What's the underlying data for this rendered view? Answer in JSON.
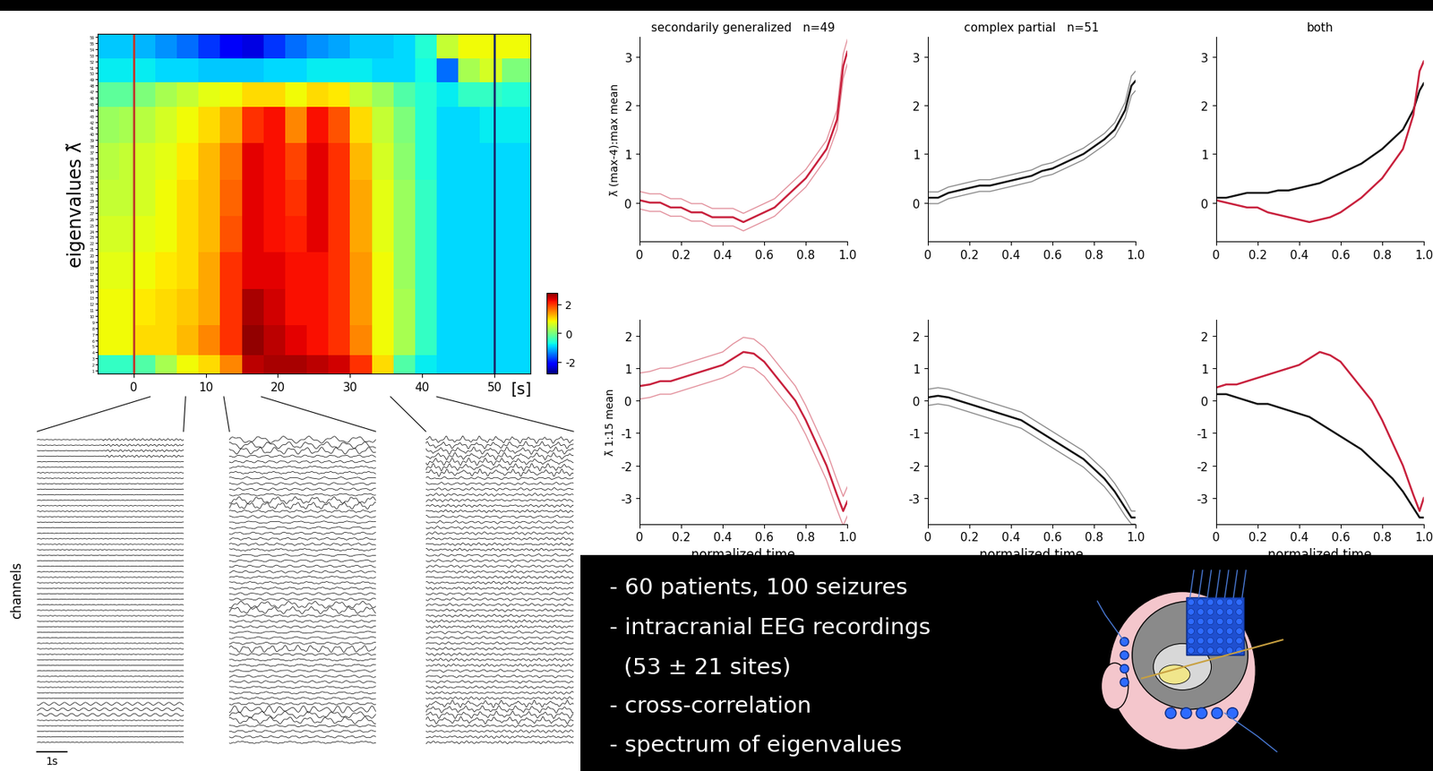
{
  "chart_data": [
    {
      "type": "heatmap",
      "ylabel": "eigenvalues λ̃",
      "xlabel": "[s]",
      "x_edges": [
        -5,
        -2,
        0,
        3,
        6,
        9,
        12,
        15,
        18,
        21,
        24,
        27,
        30,
        33,
        36,
        39,
        42,
        45,
        48,
        51,
        55
      ],
      "y_edges": [
        0.5,
        3.5,
        8.5,
        14.5,
        20.5,
        26.5,
        32.5,
        38.5,
        44.5,
        48.5,
        52.5,
        56.5
      ],
      "cells": [
        [
          -0.5,
          -0.5,
          -0.3,
          0.3,
          0.8,
          1.0,
          1.5,
          2.5,
          2.6,
          2.6,
          2.5,
          2.4,
          2.0,
          1.0,
          -0.3,
          -0.8,
          -0.9,
          -0.9,
          -0.9,
          -0.9
        ],
        [
          0.8,
          0.8,
          1.0,
          1.0,
          1.2,
          1.5,
          2.0,
          2.7,
          2.5,
          2.3,
          2.2,
          2.0,
          1.5,
          0.8,
          0.3,
          -0.5,
          -0.9,
          -0.9,
          -0.9,
          -0.9
        ],
        [
          0.8,
          0.8,
          0.9,
          1.0,
          1.1,
          1.3,
          2.0,
          2.6,
          2.4,
          2.2,
          2.2,
          2.0,
          1.4,
          0.8,
          0.3,
          -0.5,
          -0.9,
          -0.9,
          -0.9,
          -0.9
        ],
        [
          0.7,
          0.7,
          0.8,
          0.9,
          1.0,
          1.3,
          2.0,
          2.3,
          2.3,
          2.2,
          2.2,
          2.0,
          1.4,
          0.8,
          0.2,
          -0.5,
          -0.9,
          -0.9,
          -0.9,
          -0.9
        ],
        [
          0.6,
          0.6,
          0.7,
          0.8,
          1.0,
          1.2,
          1.8,
          2.3,
          2.2,
          2.1,
          2.3,
          2.0,
          1.3,
          0.7,
          0.2,
          -0.5,
          -0.9,
          -0.9,
          -0.9,
          -0.9
        ],
        [
          0.5,
          0.5,
          0.6,
          0.8,
          1.0,
          1.2,
          1.7,
          2.3,
          2.2,
          2.0,
          2.3,
          2.0,
          1.3,
          0.7,
          0.2,
          -0.5,
          -0.9,
          -0.9,
          -0.9,
          -0.9
        ],
        [
          0.4,
          0.5,
          0.6,
          0.7,
          0.9,
          1.2,
          1.6,
          2.3,
          2.2,
          1.9,
          2.3,
          2.0,
          1.2,
          0.6,
          0.1,
          -0.6,
          -0.9,
          -0.9,
          -0.9,
          -0.9
        ],
        [
          0.2,
          0.3,
          0.4,
          0.6,
          0.8,
          1.0,
          1.3,
          2.0,
          2.2,
          1.5,
          2.2,
          1.8,
          1.0,
          0.5,
          0.0,
          -0.6,
          -0.9,
          -0.9,
          -0.8,
          -0.8
        ],
        [
          -0.2,
          -0.2,
          0.0,
          0.3,
          0.5,
          0.7,
          0.8,
          1.0,
          1.0,
          0.8,
          1.0,
          0.9,
          0.5,
          0.2,
          -0.3,
          -0.6,
          -0.8,
          -0.5,
          -0.5,
          -0.6
        ],
        [
          -0.8,
          -0.8,
          -0.8,
          -0.9,
          -0.9,
          -1.0,
          -1.0,
          -1.0,
          -0.9,
          -0.9,
          -0.8,
          -0.8,
          -0.8,
          -0.9,
          -0.9,
          -0.7,
          -1.5,
          0.3,
          0.6,
          0.0
        ],
        [
          -1.0,
          -1.0,
          -1.1,
          -1.3,
          -1.5,
          -1.8,
          -2.2,
          -2.3,
          -1.8,
          -1.5,
          -1.3,
          -1.2,
          -1.0,
          -1.0,
          -0.9,
          -0.6,
          0.5,
          0.8,
          0.8,
          0.8
        ]
      ],
      "xlim": [
        -5,
        55
      ],
      "ylim": [
        0.5,
        56.5
      ],
      "xticks": [
        0,
        10,
        20,
        30,
        40,
        50
      ],
      "yticks": [
        1,
        2,
        3,
        4,
        5,
        6,
        7,
        8,
        9,
        10,
        11,
        12,
        13,
        14,
        15,
        16,
        17,
        18,
        19,
        20,
        21,
        22,
        23,
        24,
        25,
        26,
        27,
        28,
        29,
        30,
        31,
        32,
        33,
        34,
        35,
        36,
        37,
        38,
        39,
        40,
        41,
        42,
        43,
        44,
        45,
        46,
        47,
        48,
        49,
        50,
        51,
        52,
        53,
        54,
        55,
        56
      ],
      "colorbar_range": [
        -2.8,
        2.8
      ],
      "colorbar_ticks": [
        2,
        0,
        -2
      ],
      "vlines": [
        {
          "x": 0,
          "color": "#c0392b"
        },
        {
          "x": 50,
          "color": "#1a2a6c"
        }
      ]
    },
    {
      "type": "line",
      "title": "secondarily generalized   n=49",
      "ylabel": "λ̃ (max-4):max mean",
      "x": [
        0,
        0.05,
        0.1,
        0.15,
        0.2,
        0.25,
        0.3,
        0.35,
        0.4,
        0.45,
        0.5,
        0.55,
        0.6,
        0.65,
        0.7,
        0.75,
        0.8,
        0.85,
        0.9,
        0.95,
        0.98,
        1.0
      ],
      "xlim": [
        0,
        1
      ],
      "ylim": [
        -0.8,
        3.4
      ],
      "xticks": [
        0,
        0.2,
        0.4,
        0.6,
        0.8,
        {
          "value": 1,
          "label": "1.0"
        }
      ],
      "yticks": [
        0,
        1,
        2,
        3
      ],
      "series": [
        {
          "color": "#c8203c",
          "values": [
            0.05,
            0.0,
            0.0,
            -0.1,
            -0.1,
            -0.2,
            -0.2,
            -0.3,
            -0.3,
            -0.3,
            -0.4,
            -0.3,
            -0.2,
            -0.1,
            0.1,
            0.3,
            0.5,
            0.8,
            1.1,
            1.7,
            2.8,
            3.1
          ],
          "error": [
            0.18,
            0.18,
            0.18,
            0.18,
            0.18,
            0.18,
            0.18,
            0.18,
            0.18,
            0.18,
            0.18,
            0.18,
            0.18,
            0.18,
            0.18,
            0.18,
            0.18,
            0.18,
            0.18,
            0.2,
            0.25,
            0.25
          ]
        }
      ]
    },
    {
      "type": "line",
      "title": "complex partial   n=51",
      "x": [
        0,
        0.05,
        0.1,
        0.15,
        0.2,
        0.25,
        0.3,
        0.35,
        0.4,
        0.45,
        0.5,
        0.55,
        0.6,
        0.65,
        0.7,
        0.75,
        0.8,
        0.85,
        0.9,
        0.95,
        0.98,
        1.0
      ],
      "xlim": [
        0,
        1
      ],
      "ylim": [
        -0.8,
        3.4
      ],
      "xticks": [
        0,
        0.2,
        0.4,
        0.6,
        0.8,
        {
          "value": 1,
          "label": "1.0"
        }
      ],
      "yticks": [
        0,
        1,
        2,
        3
      ],
      "series": [
        {
          "color": "#111111",
          "values": [
            0.1,
            0.1,
            0.2,
            0.25,
            0.3,
            0.35,
            0.35,
            0.4,
            0.45,
            0.5,
            0.55,
            0.65,
            0.7,
            0.8,
            0.9,
            1.0,
            1.15,
            1.3,
            1.5,
            1.9,
            2.4,
            2.5
          ],
          "error": [
            0.12,
            0.12,
            0.12,
            0.12,
            0.12,
            0.12,
            0.12,
            0.12,
            0.12,
            0.12,
            0.12,
            0.12,
            0.12,
            0.12,
            0.12,
            0.12,
            0.12,
            0.12,
            0.14,
            0.16,
            0.2,
            0.2
          ]
        }
      ]
    },
    {
      "type": "line",
      "title": "both",
      "x": [
        0,
        0.05,
        0.1,
        0.15,
        0.2,
        0.25,
        0.3,
        0.35,
        0.4,
        0.45,
        0.5,
        0.55,
        0.6,
        0.65,
        0.7,
        0.75,
        0.8,
        0.85,
        0.9,
        0.95,
        0.98,
        1.0
      ],
      "xlim": [
        0,
        1
      ],
      "ylim": [
        -0.8,
        3.4
      ],
      "xticks": [
        0,
        0.2,
        0.4,
        0.6,
        0.8,
        {
          "value": 1,
          "label": "1.0"
        }
      ],
      "yticks": [
        0,
        1,
        2,
        3
      ],
      "series": [
        {
          "color": "#111111",
          "values": [
            0.1,
            0.1,
            0.15,
            0.2,
            0.2,
            0.2,
            0.25,
            0.25,
            0.3,
            0.35,
            0.4,
            0.5,
            0.6,
            0.7,
            0.8,
            0.95,
            1.1,
            1.3,
            1.5,
            1.9,
            2.3,
            2.45
          ]
        },
        {
          "color": "#c8203c",
          "values": [
            0.05,
            0.0,
            -0.05,
            -0.1,
            -0.1,
            -0.2,
            -0.25,
            -0.3,
            -0.35,
            -0.4,
            -0.35,
            -0.3,
            -0.2,
            -0.05,
            0.1,
            0.3,
            0.5,
            0.8,
            1.1,
            1.8,
            2.7,
            2.9
          ]
        }
      ]
    },
    {
      "type": "line",
      "ylabel": "λ̃ 1:15 mean",
      "xlabel": "normalized time",
      "x": [
        0,
        0.05,
        0.1,
        0.15,
        0.2,
        0.25,
        0.3,
        0.35,
        0.4,
        0.45,
        0.5,
        0.55,
        0.6,
        0.65,
        0.7,
        0.75,
        0.8,
        0.85,
        0.9,
        0.95,
        0.98,
        1.0
      ],
      "xlim": [
        0,
        1
      ],
      "ylim": [
        -3.8,
        2.5
      ],
      "xticks": [
        0,
        0.2,
        0.4,
        0.6,
        0.8,
        {
          "value": 1,
          "label": "1.0"
        }
      ],
      "yticks": [
        -3,
        -2,
        -1,
        0,
        1,
        2
      ],
      "series": [
        {
          "color": "#c8203c",
          "values": [
            0.45,
            0.5,
            0.6,
            0.6,
            0.7,
            0.8,
            0.9,
            1.0,
            1.1,
            1.3,
            1.5,
            1.45,
            1.2,
            0.8,
            0.4,
            0.0,
            -0.6,
            -1.3,
            -2.0,
            -2.9,
            -3.4,
            -3.1
          ],
          "error": [
            0.4,
            0.4,
            0.4,
            0.4,
            0.4,
            0.4,
            0.4,
            0.4,
            0.4,
            0.45,
            0.45,
            0.45,
            0.45,
            0.45,
            0.45,
            0.45,
            0.45,
            0.45,
            0.45,
            0.45,
            0.45,
            0.45
          ]
        }
      ]
    },
    {
      "type": "line",
      "xlabel": "normalized time",
      "x": [
        0,
        0.05,
        0.1,
        0.15,
        0.2,
        0.25,
        0.3,
        0.35,
        0.4,
        0.45,
        0.5,
        0.55,
        0.6,
        0.65,
        0.7,
        0.75,
        0.8,
        0.85,
        0.9,
        0.95,
        0.98,
        1.0
      ],
      "xlim": [
        0,
        1
      ],
      "ylim": [
        -3.8,
        2.5
      ],
      "xticks": [
        0,
        0.2,
        0.4,
        0.6,
        0.8,
        {
          "value": 1,
          "label": "1.0"
        }
      ],
      "yticks": [
        -3,
        -2,
        -1,
        0,
        1,
        2
      ],
      "series": [
        {
          "color": "#111111",
          "values": [
            0.1,
            0.15,
            0.1,
            0.0,
            -0.1,
            -0.2,
            -0.3,
            -0.4,
            -0.5,
            -0.6,
            -0.8,
            -1.0,
            -1.2,
            -1.4,
            -1.6,
            -1.8,
            -2.1,
            -2.4,
            -2.8,
            -3.3,
            -3.6,
            -3.6
          ],
          "error": [
            0.25,
            0.25,
            0.25,
            0.25,
            0.25,
            0.25,
            0.25,
            0.25,
            0.25,
            0.25,
            0.25,
            0.25,
            0.25,
            0.25,
            0.25,
            0.25,
            0.25,
            0.25,
            0.25,
            0.25,
            0.2,
            0.2
          ]
        }
      ]
    },
    {
      "type": "line",
      "xlabel": "normalized time",
      "x": [
        0,
        0.05,
        0.1,
        0.15,
        0.2,
        0.25,
        0.3,
        0.35,
        0.4,
        0.45,
        0.5,
        0.55,
        0.6,
        0.65,
        0.7,
        0.75,
        0.8,
        0.85,
        0.9,
        0.95,
        0.98,
        1.0
      ],
      "xlim": [
        0,
        1
      ],
      "ylim": [
        -3.8,
        2.5
      ],
      "xticks": [
        0,
        0.2,
        0.4,
        0.6,
        0.8,
        {
          "value": 1,
          "label": "1.0"
        }
      ],
      "yticks": [
        -3,
        -2,
        -1,
        0,
        1,
        2
      ],
      "series": [
        {
          "color": "#111111",
          "values": [
            0.2,
            0.2,
            0.1,
            0.0,
            -0.1,
            -0.1,
            -0.2,
            -0.3,
            -0.4,
            -0.5,
            -0.7,
            -0.9,
            -1.1,
            -1.3,
            -1.5,
            -1.8,
            -2.1,
            -2.4,
            -2.8,
            -3.3,
            -3.6,
            -3.6
          ]
        },
        {
          "color": "#c8203c",
          "values": [
            0.4,
            0.5,
            0.5,
            0.6,
            0.7,
            0.8,
            0.9,
            1.0,
            1.1,
            1.3,
            1.5,
            1.4,
            1.2,
            0.8,
            0.4,
            0.0,
            -0.6,
            -1.3,
            -2.0,
            -2.9,
            -3.4,
            -3.0
          ]
        }
      ]
    }
  ],
  "eeg_traces": {
    "ylabel": "channels",
    "scale_bar": "1s",
    "scale_bar_s": 1,
    "windows": [
      [
        2.3,
        7.2
      ],
      [
        12.5,
        17.7
      ],
      [
        35.6,
        42.0
      ]
    ],
    "channels": 56
  },
  "info_box": {
    "lines": [
      "- 60 patients, 100 seizures",
      "- intracranial EEG recordings",
      "  (53 ± 21 sites)",
      "- cross-correlation",
      "- spectrum of eigenvalues"
    ]
  }
}
